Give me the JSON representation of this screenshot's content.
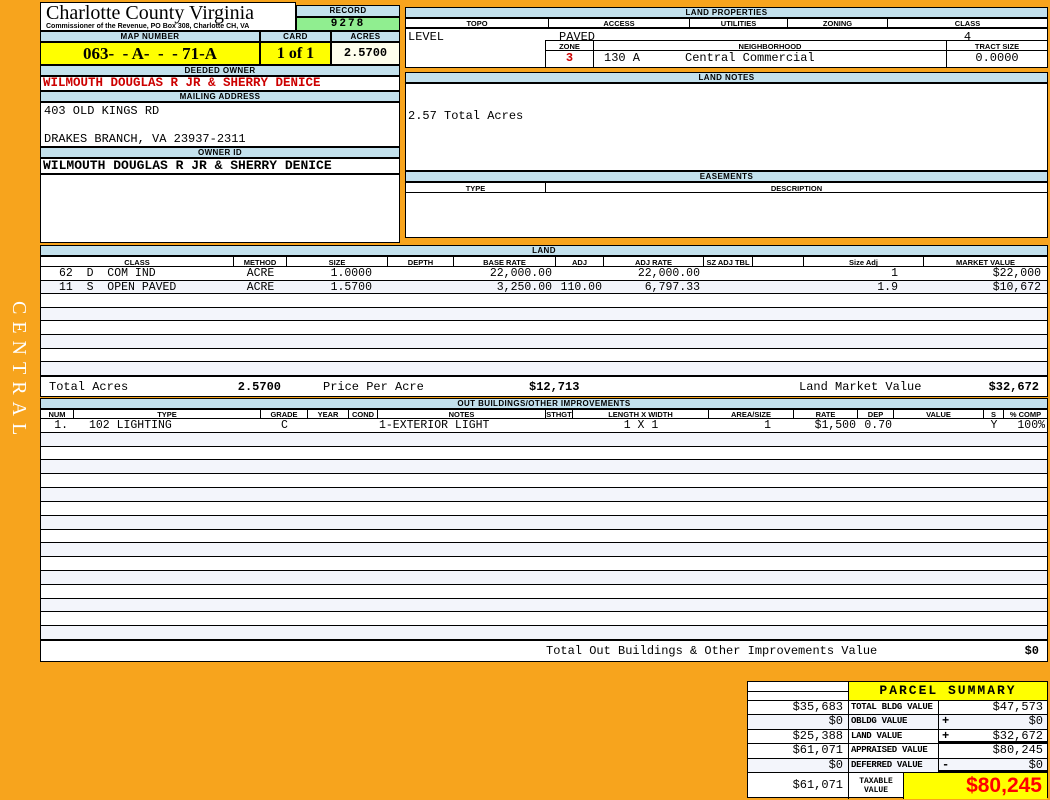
{
  "sidebar": {
    "district_label": "CENTRAL"
  },
  "header": {
    "county_title": "Charlotte County Virginia",
    "county_subtitle": "Commissioner of the Revenue, PO Box 308, Charlotte CH, VA",
    "record_label": "RECORD",
    "record_value": "9278",
    "map_number_label": "MAP NUMBER",
    "map_number_value": "063-  - A-  -  - 71-A",
    "card_label": "CARD",
    "card_value": "1 of 1",
    "acres_label": "ACRES",
    "acres_value": "2.5700"
  },
  "owner": {
    "deeded_owner_label": "DEEDED OWNER",
    "deeded_owner": "WILMOUTH DOUGLAS R JR & SHERRY DENICE",
    "mailing_address_label": "MAILING ADDRESS",
    "address_line1": "403 OLD KINGS RD",
    "address_line2": "DRAKES BRANCH, VA 23937-2311",
    "owner_id_label": "OWNER ID",
    "owner_id": "WILMOUTH DOUGLAS R JR & SHERRY DENICE"
  },
  "land_properties": {
    "title": "LAND PROPERTIES",
    "headers": [
      "TOPO",
      "ACCESS",
      "UTILITIES",
      "ZONING",
      "CLASS"
    ],
    "topo": "LEVEL",
    "access": "PAVED",
    "utilities": "",
    "zoning": "",
    "class": "4",
    "zone_label": "ZONE",
    "zone": "3",
    "neighborhood_label": "NEIGHBORHOOD",
    "neighborhood_code": "130 A",
    "neighborhood_name": "Central Commercial",
    "tract_size_label": "TRACT SIZE",
    "tract_size": "0.0000"
  },
  "land_notes": {
    "title": "LAND NOTES",
    "note": "2.57 Total Acres"
  },
  "easements": {
    "title": "EASEMENTS",
    "type_label": "TYPE",
    "description_label": "DESCRIPTION"
  },
  "land_table": {
    "title": "LAND",
    "headers": [
      "CLASS",
      "METHOD",
      "SIZE",
      "DEPTH",
      "BASE RATE",
      "ADJ",
      "ADJ RATE",
      "SZ ADJ TBL",
      "",
      "Size Adj",
      "MARKET VALUE"
    ],
    "rows": [
      {
        "class": "62  D  COM IND",
        "method": "ACRE",
        "size": "1.0000",
        "depth": "",
        "base_rate": "22,000.00",
        "adj": "",
        "adj_rate": "22,000.00",
        "sz_adj_tbl": "",
        "size_adj": "1",
        "market_value": "$22,000"
      },
      {
        "class": "11  S  OPEN PAVED",
        "method": "ACRE",
        "size": "1.5700",
        "depth": "",
        "base_rate": "3,250.00",
        "adj": "110.00",
        "adj_rate": "6,797.33",
        "sz_adj_tbl": "",
        "size_adj": "1.9",
        "market_value": "$10,672"
      }
    ],
    "empty_row_count": 6,
    "total_acres_label": "Total Acres",
    "total_acres": "2.5700",
    "price_per_acre_label": "Price Per Acre",
    "price_per_acre": "$12,713",
    "land_market_value_label": "Land Market Value",
    "land_market_value": "$32,672"
  },
  "out_buildings": {
    "title": "OUT BUILDINGS/OTHER IMPROVEMENTS",
    "headers": [
      "NUM",
      "TYPE",
      "GRADE",
      "YEAR",
      "COND",
      "NOTES",
      "STHGT",
      "LENGTH X WIDTH",
      "AREA/SIZE",
      "RATE",
      "DEP",
      "VALUE",
      "S",
      "% COMP"
    ],
    "rows": [
      {
        "num": "1.",
        "type": "102 LIGHTING",
        "grade": "C",
        "year": "",
        "cond": "",
        "notes": "1-EXTERIOR LIGHT",
        "sthgt": "",
        "length_width": "1 X 1",
        "area_size": "1",
        "rate": "$1,500",
        "dep": "0.70",
        "value": "",
        "s": "Y",
        "pct_comp": "100%"
      }
    ],
    "empty_row_count": 15,
    "total_label": "Total Out Buildings & Other Improvements Value",
    "total_value": "$0"
  },
  "parcel_summary": {
    "title": "PARCEL SUMMARY",
    "rows": [
      {
        "left": "$35,683",
        "label": "TOTAL BLDG VALUE",
        "op": "",
        "right": "$47,573"
      },
      {
        "left": "$0",
        "label": "OBLDG VALUE",
        "op": "+",
        "right": "$0"
      },
      {
        "left": "$25,388",
        "label": "LAND VALUE",
        "op": "+",
        "right": "$32,672"
      },
      {
        "left": "$61,071",
        "label": "APPRAISED VALUE",
        "op": "",
        "right": "$80,245"
      },
      {
        "left": "$0",
        "label": "DEFERRED VALUE",
        "op": "-",
        "right": "$0"
      }
    ],
    "taxable_left": "$61,071",
    "taxable_label": "TAXABLE\nVALUE",
    "taxable_value": "$80,245"
  },
  "colors": {
    "page_background": "#F7A41D",
    "band_blue": "#C3E1ED",
    "row_alt_blue": "#F3F5FB",
    "record_green": "#90EE90",
    "highlight_yellow": "#FFFF00",
    "acres_ivory": "#FEFEEC",
    "alert_red": "#CC0000",
    "taxable_red": "#FF0000"
  }
}
